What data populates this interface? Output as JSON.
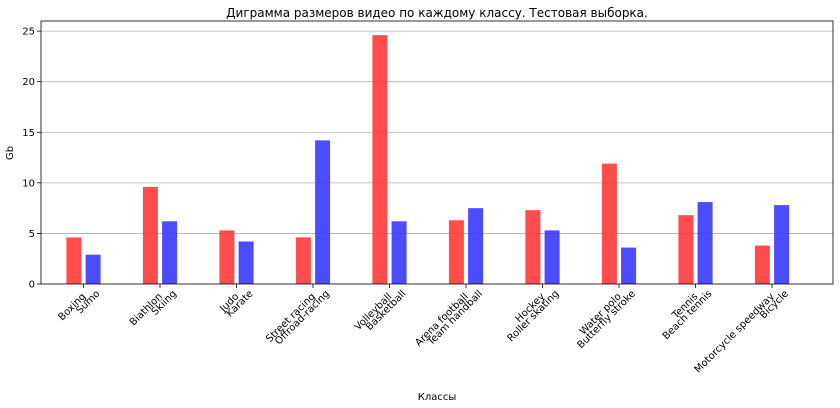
{
  "chart_data": {
    "type": "bar",
    "title": "Диграмма размеров видео по каждому классу. Тестовая выборка.",
    "xlabel": "Классы",
    "ylabel": "Gb",
    "ylim": [
      0,
      26
    ],
    "yticks": [
      0,
      5,
      10,
      15,
      20,
      25
    ],
    "grid": "horizontal",
    "categories": [
      {
        "line1": "Boxing",
        "line2": "Sumo"
      },
      {
        "line1": "Biathlon",
        "line2": "Skiing"
      },
      {
        "line1": "Judo",
        "line2": "Karate"
      },
      {
        "line1": "Street racing",
        "line2": "Offroad-racing"
      },
      {
        "line1": "Volleyball",
        "line2": "Basketball"
      },
      {
        "line1": "Arena football",
        "line2": "Team handball"
      },
      {
        "line1": "Hockey",
        "line2": "Roller skating"
      },
      {
        "line1": "Water polo",
        "line2": "Butterfly stroke"
      },
      {
        "line1": "Tennis",
        "line2": "Beach tennis"
      },
      {
        "line1": "Motorcycle speedway",
        "line2": "Bicycle"
      }
    ],
    "series": [
      {
        "color": "#ff3333",
        "values": [
          4.6,
          9.6,
          5.3,
          4.6,
          24.6,
          6.3,
          7.3,
          11.9,
          6.8,
          3.8
        ]
      },
      {
        "color": "#3333ff",
        "values": [
          2.9,
          6.2,
          4.2,
          14.2,
          6.2,
          7.5,
          5.3,
          3.6,
          8.1,
          7.8
        ]
      }
    ]
  }
}
